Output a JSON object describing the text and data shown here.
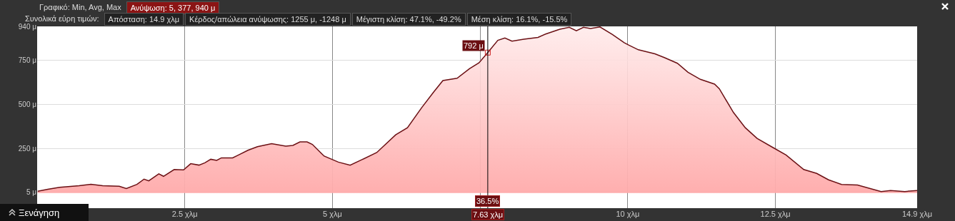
{
  "chart_data": {
    "type": "area",
    "annotations": [
      "Γραφικό: Min, Avg, Max",
      "Ανύψωση: 5, 377, 940 μ",
      "Συνολικά εύρη τιμών:",
      "Απόσταση: 14.9 χλμ",
      "Κέρδος/απώλεια ανύψωσης: 1255 μ, -1248 μ",
      "Μέγιστη κλίση: 47.1%, -49.2%",
      "Μέση κλίση: 16.1%, -15.5%",
      {
        "text": "792 μ",
        "x": 7.63,
        "y": 792
      },
      {
        "text": "36.5%",
        "x": 7.63
      },
      "Ξενάγηση"
    ],
    "x": [
      0.01,
      0.18,
      0.38,
      0.71,
      0.91,
      1.11,
      1.39,
      1.51,
      1.69,
      1.81,
      1.89,
      2.06,
      2.14,
      2.32,
      2.48,
      2.6,
      2.74,
      2.84,
      2.94,
      3.04,
      3.12,
      3.31,
      3.41,
      3.57,
      3.73,
      3.97,
      4.21,
      4.33,
      4.45,
      4.57,
      4.66,
      4.82,
      4.86,
      5.1,
      5.3,
      5.5,
      5.75,
      6.07,
      6.27,
      6.51,
      6.71,
      6.87,
      7.11,
      7.32,
      7.48,
      7.63,
      7.8,
      7.92,
      8.04,
      8.24,
      8.48,
      8.61,
      8.85,
      9.01,
      9.13,
      9.25,
      9.37,
      9.53,
      9.74,
      9.94,
      10.02,
      10.18,
      10.46,
      10.62,
      10.84,
      11.02,
      11.23,
      11.47,
      11.55,
      11.79,
      11.99,
      12.19,
      12.47,
      12.68,
      12.98,
      13.2,
      13.4,
      13.62,
      13.89,
      14.29,
      14.45,
      14.69,
      14.9
    ],
    "series": [
      {
        "color": "#6b1014",
        "values": [
          10,
          21,
          32,
          41,
          49,
          41,
          38,
          25,
          48,
          78,
          68,
          108,
          94,
          132,
          130,
          165,
          157,
          170,
          190,
          184,
          198,
          198,
          214,
          241,
          261,
          278,
          264,
          268,
          288,
          288,
          274,
          221,
          208,
          174,
          157,
          188,
          228,
          328,
          368,
          481,
          568,
          634,
          647,
          701,
          734,
          792,
          861,
          874,
          857,
          868,
          878,
          897,
          924,
          935,
          915,
          935,
          928,
          937,
          894,
          848,
          834,
          808,
          785,
          764,
          732,
          681,
          641,
          614,
          588,
          454,
          368,
          308,
          254,
          214,
          132,
          110,
          74,
          48,
          45,
          8,
          14,
          8,
          14
        ]
      }
    ],
    "xlim": [
      0,
      14.9
    ],
    "xticks": [
      {
        "value": 2.5,
        "label": "2.5 χλμ"
      },
      {
        "value": 5,
        "label": "5 χλμ"
      },
      {
        "value": 7.5,
        "label": null
      },
      {
        "value": 10,
        "label": "10 χλμ"
      },
      {
        "value": 12.5,
        "label": "12.5 χλμ"
      },
      {
        "value": 14.9,
        "label": "14.9 χλμ"
      }
    ],
    "ylim": [
      -86,
      940
    ],
    "yticks": [
      {
        "value": 5,
        "label": "5 μ"
      },
      {
        "value": 250,
        "label": "250 μ"
      },
      {
        "value": 500,
        "label": "500 μ"
      },
      {
        "value": 750,
        "label": "750 μ"
      },
      {
        "value": 940,
        "label": "940 μ"
      }
    ],
    "ref_lines": [
      {
        "axis": "x",
        "value": 7.63,
        "label": "7.63 χλμ",
        "color": "#000000"
      }
    ],
    "grid": true,
    "legend": false,
    "marker": "none",
    "line_style": "solid"
  }
}
